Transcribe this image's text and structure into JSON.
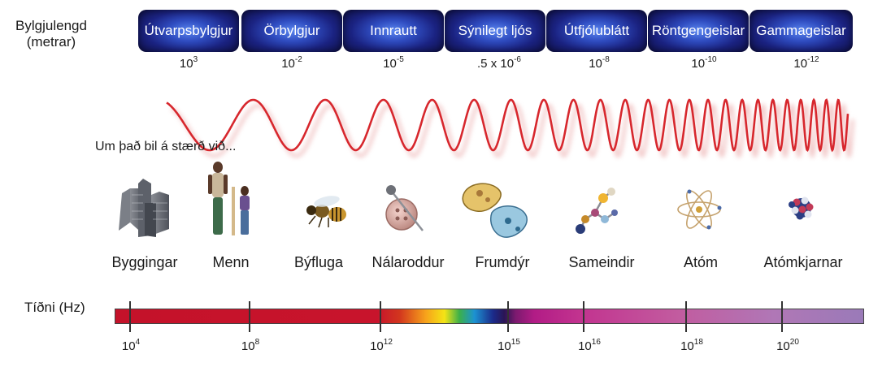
{
  "wavelength_axis": {
    "label_line1": "Bylgjulengd",
    "label_line2": "(metrar)"
  },
  "bands": [
    "Útvarpsbylgjur",
    "Örbylgjur",
    "Innrautt",
    "Sýnilegt ljós",
    "Útfjólublátt",
    "Röntgengeislar",
    "Gammageislar"
  ],
  "wavelengths": [
    {
      "prefix": "",
      "base": "10",
      "exp": "3"
    },
    {
      "prefix": "",
      "base": "10",
      "exp": "-2"
    },
    {
      "prefix": "",
      "base": "10",
      "exp": "-5"
    },
    {
      "prefix": ".5 x ",
      "base": "10",
      "exp": "-6"
    },
    {
      "prefix": "",
      "base": "10",
      "exp": "-8"
    },
    {
      "prefix": "",
      "base": "10",
      "exp": "-10"
    },
    {
      "prefix": "",
      "base": "10",
      "exp": "-12"
    }
  ],
  "compare_text": "Um það bil á stærð við...",
  "objects": [
    "Byggingar",
    "Menn",
    "Býfluga",
    "Nálaroddur",
    "Frumdýr",
    "Sameindir",
    "Atóm",
    "Atómkjarnar"
  ],
  "icons": [
    "buildings-icon",
    "people-icon",
    "bee-icon",
    "pin-button-icon",
    "protozoa-icon",
    "molecule-icon",
    "atom-icon",
    "nucleus-icon"
  ],
  "frequency_axis": {
    "label": "Tíðni (Hz)"
  },
  "frequencies": [
    {
      "base": "10",
      "exp": "4"
    },
    {
      "base": "10",
      "exp": "8"
    },
    {
      "base": "10",
      "exp": "12"
    },
    {
      "base": "10",
      "exp": "15"
    },
    {
      "base": "10",
      "exp": "16"
    },
    {
      "base": "10",
      "exp": "18"
    },
    {
      "base": "10",
      "exp": "20"
    }
  ],
  "colors": {
    "band_dark": "#121559",
    "band_light": "#5a86f0",
    "wave": "#d7272d",
    "bar_red": "#c4122a",
    "bar_violet": "#9a7ab8"
  }
}
